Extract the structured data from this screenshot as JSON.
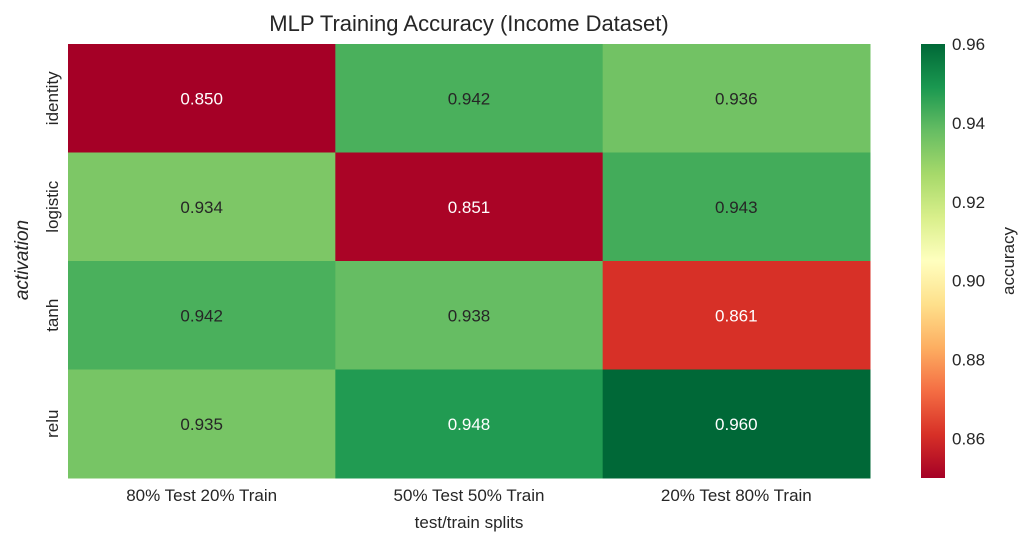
{
  "chart_data": {
    "type": "heatmap",
    "title": "MLP Training Accuracy (Income Dataset)",
    "xlabel": "test/train splits",
    "ylabel": "activation",
    "x_categories": [
      "80% Test 20% Train",
      "50% Test 50% Train",
      "20% Test 80% Train"
    ],
    "y_categories": [
      "identity",
      "logistic",
      "tanh",
      "relu"
    ],
    "values": [
      [
        0.85,
        0.942,
        0.936
      ],
      [
        0.934,
        0.851,
        0.943
      ],
      [
        0.942,
        0.938,
        0.861
      ],
      [
        0.935,
        0.948,
        0.96
      ]
    ],
    "value_format": "0.000",
    "colormap": "RdYlGn",
    "vmin": 0.85,
    "vmax": 0.96,
    "colorbar": {
      "label": "accuracy",
      "ticks": [
        0.86,
        0.88,
        0.9,
        0.92,
        0.94,
        0.96
      ],
      "tick_labels": [
        "0.86",
        "0.88",
        "0.90",
        "0.92",
        "0.94",
        "0.96"
      ]
    }
  }
}
